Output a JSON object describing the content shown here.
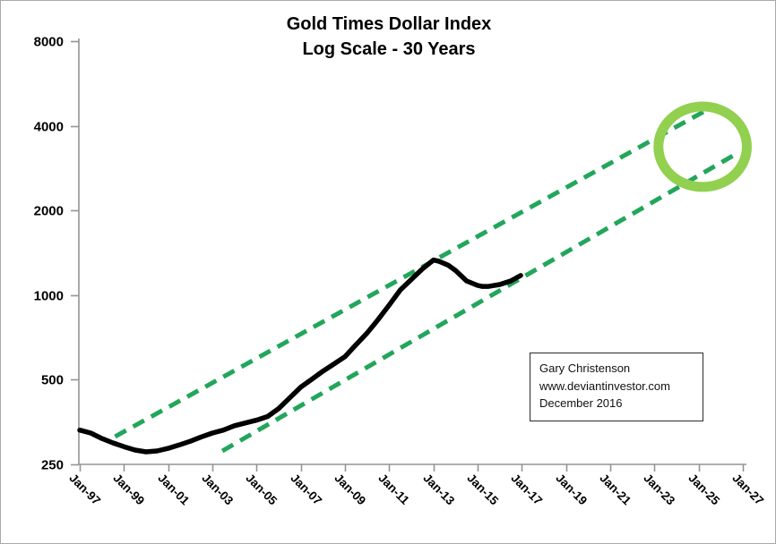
{
  "title": {
    "line1": "Gold Times Dollar Index",
    "line2": "Log Scale - 30 Years"
  },
  "annotation": {
    "line1": "Gary Christenson",
    "line2": "www.deviantinvestor.com",
    "line3": "December 2016"
  },
  "colors": {
    "series_line": "#000000",
    "trend_dashed": "#22a65b",
    "highlight_circle": "#92d050",
    "axis": "#949494",
    "text": "#000000",
    "frame_border": "#ababab",
    "annotation_border": "#2b2b2b",
    "background": "#ffffff"
  },
  "chart_data": {
    "type": "line",
    "title": "Gold Times Dollar Index",
    "subtitle": "Log Scale - 30 Years",
    "y_scale": "log",
    "ylim": [
      250,
      8000
    ],
    "y_ticks": [
      8000,
      4000,
      2000,
      1000,
      500,
      250
    ],
    "x_tick_labels": [
      "Jan-97",
      "Jan-99",
      "Jan-01",
      "Jan-03",
      "Jan-05",
      "Jan-07",
      "Jan-09",
      "Jan-11",
      "Jan-13",
      "Jan-15",
      "Jan-17",
      "Jan-19",
      "Jan-21",
      "Jan-23",
      "Jan-25",
      "Jan-27"
    ],
    "x_tick_years": [
      1997,
      1999,
      2001,
      2003,
      2005,
      2007,
      2009,
      2011,
      2013,
      2015,
      2017,
      2019,
      2021,
      2023,
      2025,
      2027
    ],
    "xlim_years": [
      1997,
      2027
    ],
    "grid": false,
    "legend": "none",
    "series": [
      {
        "name": "Gold Times Dollar Index",
        "points": [
          [
            1997.0,
            331
          ],
          [
            1997.5,
            323
          ],
          [
            1998.0,
            309
          ],
          [
            1998.5,
            298
          ],
          [
            1999.0,
            289
          ],
          [
            1999.5,
            281
          ],
          [
            2000.0,
            277
          ],
          [
            2000.5,
            279
          ],
          [
            2001.0,
            285
          ],
          [
            2001.5,
            293
          ],
          [
            2002.0,
            302
          ],
          [
            2002.5,
            313
          ],
          [
            2003.0,
            323
          ],
          [
            2003.5,
            331
          ],
          [
            2004.0,
            343
          ],
          [
            2004.5,
            351
          ],
          [
            2005.0,
            359
          ],
          [
            2005.5,
            370
          ],
          [
            2006.0,
            395
          ],
          [
            2006.5,
            431
          ],
          [
            2007.0,
            471
          ],
          [
            2007.5,
            502
          ],
          [
            2008.0,
            536
          ],
          [
            2008.5,
            569
          ],
          [
            2009.0,
            604
          ],
          [
            2009.5,
            666
          ],
          [
            2010.0,
            733
          ],
          [
            2010.5,
            819
          ],
          [
            2011.0,
            921
          ],
          [
            2011.5,
            1043
          ],
          [
            2012.0,
            1136
          ],
          [
            2012.5,
            1239
          ],
          [
            2013.0,
            1333
          ],
          [
            2013.26,
            1318
          ],
          [
            2013.66,
            1278
          ],
          [
            2014.0,
            1224
          ],
          [
            2014.5,
            1123
          ],
          [
            2015.0,
            1082
          ],
          [
            2015.2,
            1074
          ],
          [
            2015.5,
            1074
          ],
          [
            2016.0,
            1090
          ],
          [
            2016.5,
            1123
          ],
          [
            2016.95,
            1174
          ]
        ]
      }
    ],
    "trend_channel": [
      {
        "name": "upper",
        "from": {
          "year": 1998.6,
          "value": 314
        },
        "to": {
          "year": 2025.66,
          "value": 4690
        }
      },
      {
        "name": "lower",
        "from": {
          "year": 2003.45,
          "value": 279
        },
        "to": {
          "year": 2026.76,
          "value": 3200
        }
      }
    ],
    "highlight_ellipse": {
      "center_year": 2025.18,
      "center_value": 3370,
      "radius_years": 2.0,
      "radius_value_ratio": 1.39
    }
  }
}
